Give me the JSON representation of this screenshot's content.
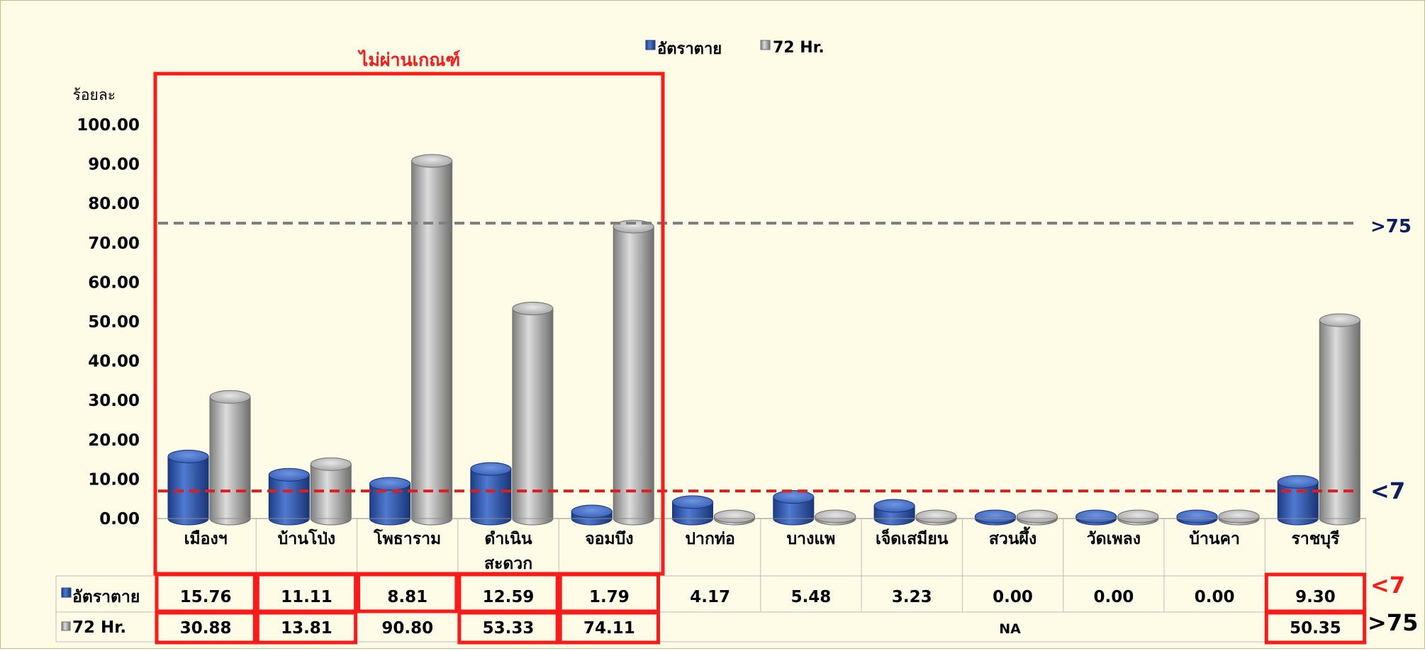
{
  "chart_data": {
    "type": "bar",
    "ylabel": "ร้อยละ",
    "ylim": [
      0,
      100
    ],
    "yticks": [
      "0.00",
      "10.00",
      "20.00",
      "30.00",
      "40.00",
      "50.00",
      "60.00",
      "70.00",
      "80.00",
      "90.00",
      "100.00"
    ],
    "categories": [
      "เมืองฯ",
      "บ้านโป่ง",
      "โพธาราม",
      "ดำเนินสะดวก",
      "จอมบึง",
      "ปากท่อ",
      "บางแพ",
      "เจ็ดเสมียน",
      "สวนผึ้ง",
      "วัดเพลง",
      "บ้านคา",
      "ราชบุรี"
    ],
    "category_lines": [
      [
        "เมืองฯ"
      ],
      [
        "บ้านโป่ง"
      ],
      [
        "โพธาราม"
      ],
      [
        "ดำเนิน",
        "สะดวก"
      ],
      [
        "จอมบึง"
      ],
      [
        "ปากท่อ"
      ],
      [
        "บางแพ"
      ],
      [
        "เจ็ดเสมียน"
      ],
      [
        "สวนผึ้ง"
      ],
      [
        "วัดเพลง"
      ],
      [
        "บ้านคา"
      ],
      [
        "ราชบุรี"
      ]
    ],
    "series": [
      {
        "name": "อัตราตาย",
        "color": "#2f57a8",
        "values": [
          15.76,
          11.11,
          8.81,
          12.59,
          1.79,
          4.17,
          5.48,
          3.23,
          0.0,
          0.0,
          0.0,
          9.3
        ],
        "table_values": [
          "15.76",
          "11.11",
          "8.81",
          "12.59",
          "1.79",
          "4.17",
          "5.48",
          "3.23",
          "0.00",
          "0.00",
          "0.00",
          "9.30"
        ]
      },
      {
        "name": "72 Hr.",
        "color": "#9a9a9a",
        "values": [
          30.88,
          13.81,
          90.8,
          53.33,
          74.11,
          0,
          0,
          0,
          0,
          0,
          0,
          50.35
        ],
        "table_values": [
          "30.88",
          "13.81",
          "90.80",
          "53.33",
          "74.11",
          "",
          "",
          "",
          "",
          "",
          "",
          "50.35"
        ],
        "na_label": "NA"
      }
    ],
    "reference_lines": [
      {
        "value": 75,
        "color": "#7f7f7f",
        "label": ">75",
        "label_color": "#0d1f5c"
      },
      {
        "value": 7,
        "color": "#e31b1b",
        "label": "<7",
        "label_color": "#0d1f5c"
      }
    ],
    "annotations": {
      "fail_label": "ไม่ผ่านเกณฑ์",
      "table_marker_rate": "<7",
      "table_marker_72": ">75"
    },
    "legend": {
      "position": "top-center",
      "rate_label": "อัตราตาย",
      "hr72_label": "72 Hr."
    },
    "highlight_color": "#ff1a1a"
  }
}
